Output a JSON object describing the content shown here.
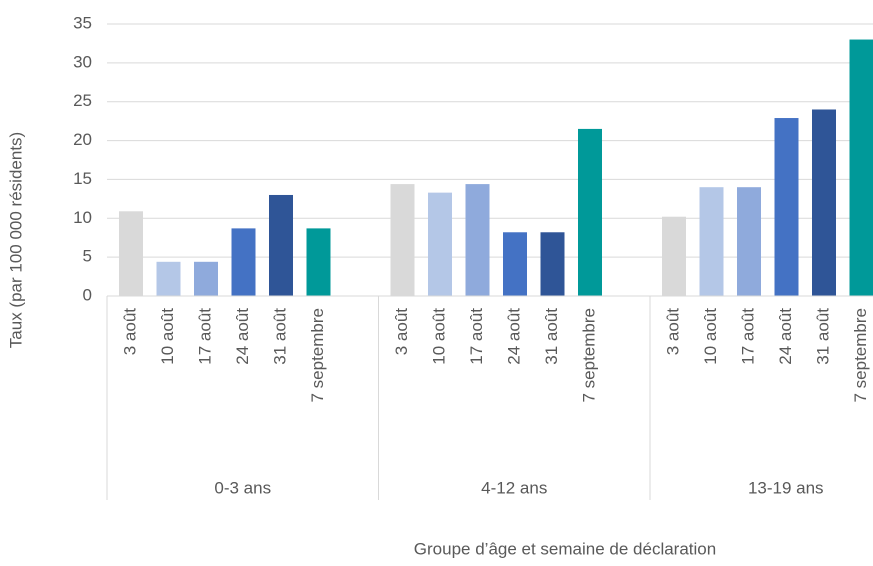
{
  "chart_data": {
    "type": "bar",
    "x_label": "Groupe d’âge et semaine de déclaration",
    "y_label": "Taux (par 100 000    résidents)",
    "categories": [
      "0-3 ans",
      "4-12 ans",
      "13-19 ans"
    ],
    "series": [
      {
        "name": "3 août",
        "color": "#d9d9d9",
        "values": [
          10.9,
          14.4,
          10.2
        ]
      },
      {
        "name": "10 août",
        "color": "#b4c7e7",
        "values": [
          4.4,
          13.3,
          14.0
        ]
      },
      {
        "name": "17 août",
        "color": "#8faadc",
        "values": [
          4.4,
          14.4,
          14.0
        ]
      },
      {
        "name": "24 août",
        "color": "#4472c4",
        "values": [
          8.7,
          8.2,
          22.9
        ]
      },
      {
        "name": "31 août",
        "color": "#2f5597",
        "values": [
          13.0,
          8.2,
          24.0
        ]
      },
      {
        "name": "7 septembre",
        "color": "#009999",
        "values": [
          8.7,
          21.5,
          33.0
        ]
      }
    ],
    "ylim": [
      0,
      35
    ],
    "yticks": [
      0,
      5,
      10,
      15,
      20,
      25,
      30,
      35
    ],
    "grid": true
  }
}
